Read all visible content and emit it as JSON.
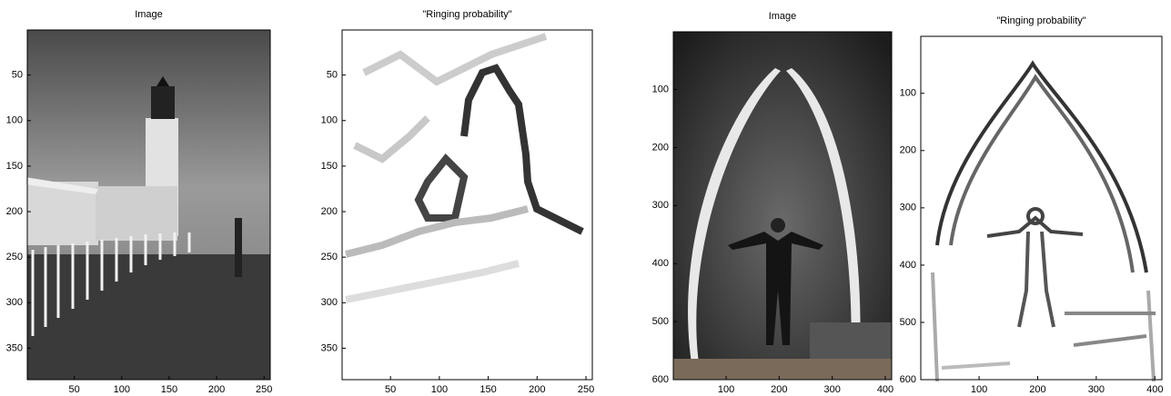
{
  "chart_data": [
    {
      "type": "image",
      "title": "Image",
      "xlim": [
        0.5,
        256.5
      ],
      "ylim": [
        0.5,
        384.5
      ],
      "y_reversed": true,
      "xticks": [
        50,
        100,
        150,
        200,
        250
      ],
      "yticks": [
        50,
        100,
        150,
        200,
        250,
        300,
        350
      ]
    },
    {
      "type": "image",
      "title": "\"Ringing probability\"",
      "xlim": [
        0.5,
        256.5
      ],
      "ylim": [
        0.5,
        384.5
      ],
      "y_reversed": true,
      "xticks": [
        50,
        100,
        150,
        200,
        250
      ],
      "yticks": [
        50,
        100,
        150,
        200,
        250,
        300,
        350
      ]
    },
    {
      "type": "image",
      "title": "Image",
      "xlim": [
        0.5,
        412
      ],
      "ylim": [
        0.5,
        600
      ],
      "y_reversed": true,
      "xticks": [
        100,
        200,
        300,
        400
      ],
      "yticks": [
        100,
        200,
        300,
        400,
        500,
        600
      ]
    },
    {
      "type": "image",
      "title": "\"Ringing probability\"",
      "xlim": [
        0.5,
        412
      ],
      "ylim": [
        0.5,
        600
      ],
      "y_reversed": true,
      "xticks": [
        100,
        200,
        300,
        400
      ],
      "yticks": [
        100,
        200,
        300,
        400,
        500,
        600
      ]
    }
  ]
}
